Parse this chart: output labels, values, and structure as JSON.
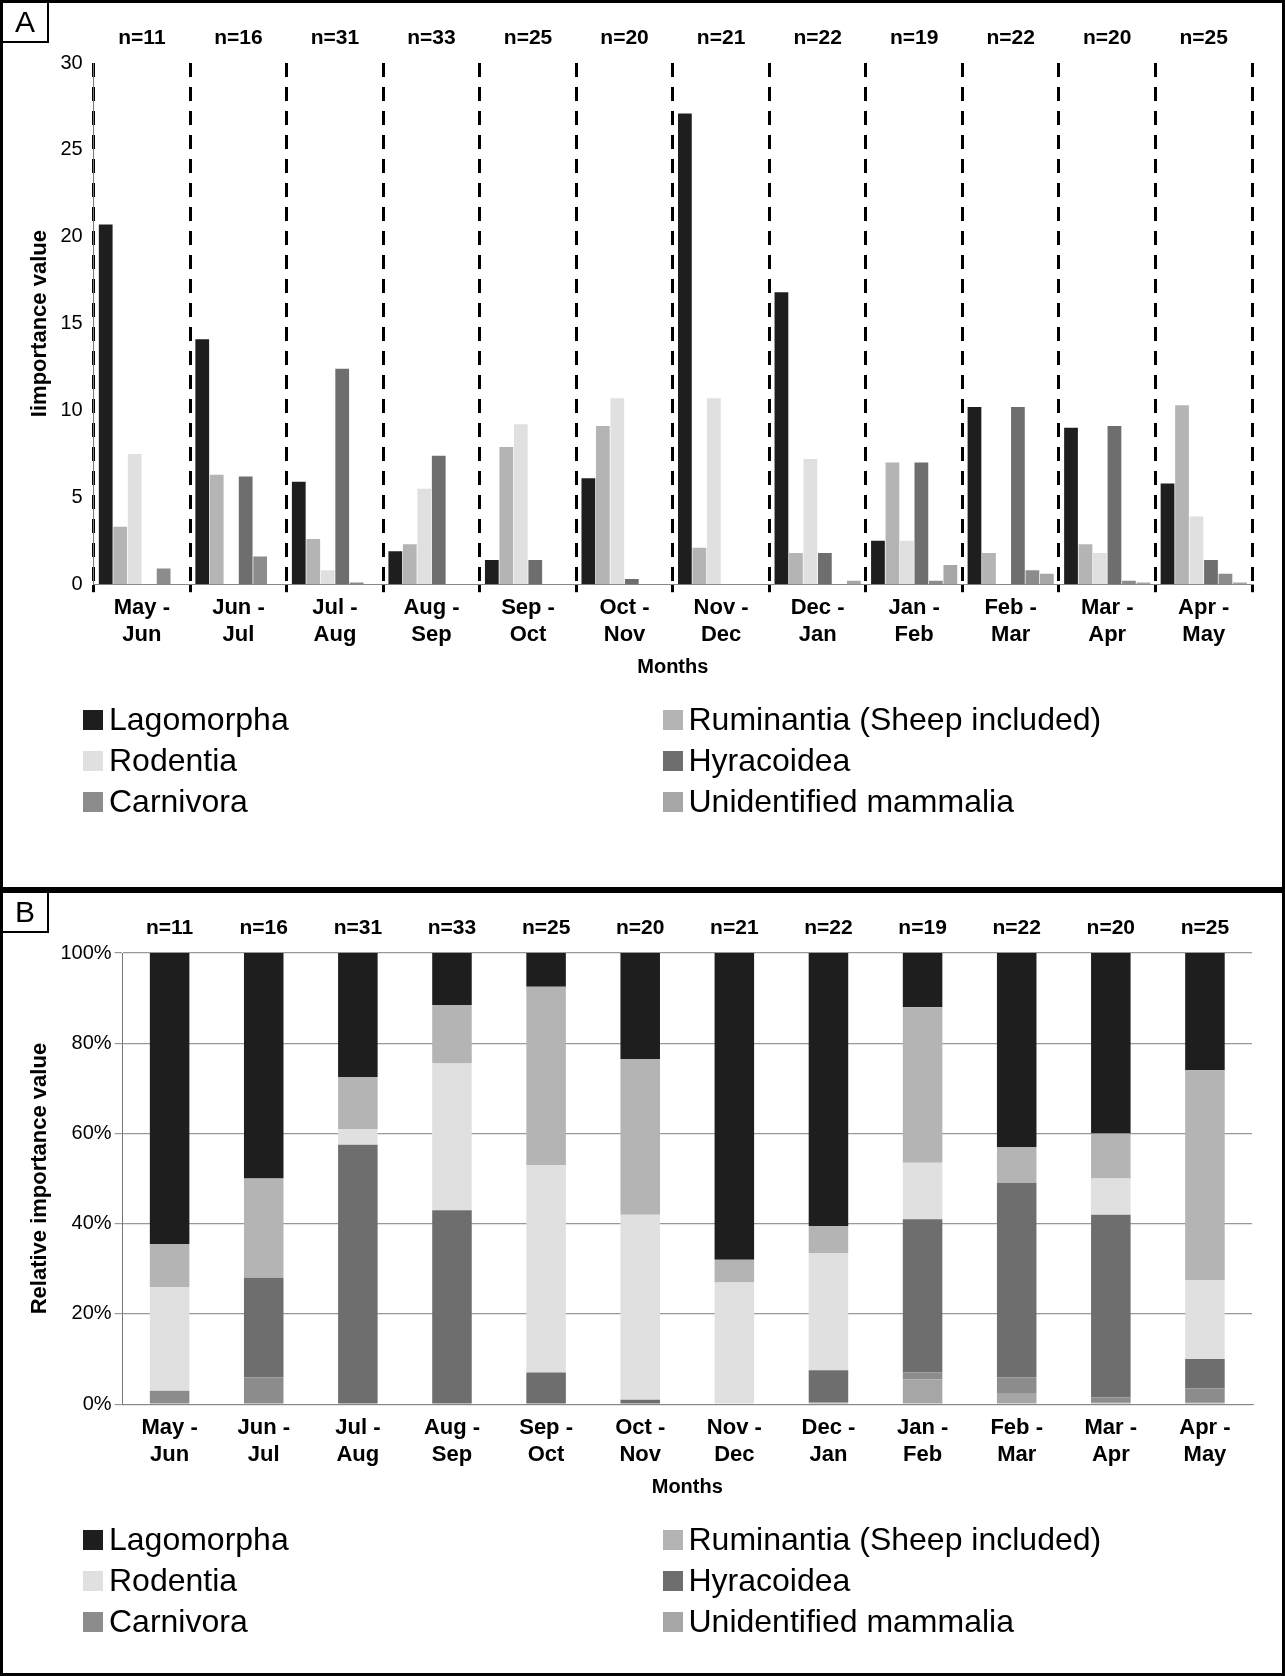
{
  "chart_data": [
    {
      "type": "bar",
      "title": "A",
      "xlabel": "Months",
      "ylabel": "Iimportance value",
      "categories": [
        "May - Jun",
        "Jun - Jul",
        "Jul - Aug",
        "Aug - Sep",
        "Sep - Oct",
        "Oct - Nov",
        "Nov - Dec",
        "Dec - Jan",
        "Jan - Feb",
        "Feb - Mar",
        "Mar - Apr",
        "Apr - May"
      ],
      "series": [
        {
          "name": "Lagomorpha",
          "color": "#1e1e1e",
          "values": [
            20.7,
            14.1,
            5.9,
            1.9,
            1.4,
            6.1,
            27.1,
            16.8,
            2.5,
            10.2,
            9.0,
            5.8
          ]
        },
        {
          "name": "Ruminantia (Sheep included)",
          "color": "#b4b4b4",
          "values": [
            3.3,
            6.3,
            2.6,
            2.3,
            7.9,
            9.1,
            2.1,
            1.8,
            7.0,
            1.8,
            2.3,
            10.3
          ]
        },
        {
          "name": "Rodentia",
          "color": "#e0e0e0",
          "values": [
            7.5,
            0,
            0.8,
            5.5,
            9.2,
            10.7,
            10.7,
            7.2,
            2.5,
            0,
            1.8,
            3.9
          ]
        },
        {
          "name": "Hyracoidea",
          "color": "#6e6e6e",
          "values": [
            0,
            6.2,
            12.4,
            7.4,
            1.4,
            0.3,
            0,
            1.8,
            7.0,
            10.2,
            9.1,
            1.4
          ]
        },
        {
          "name": "Carnivora",
          "color": "#8c8c8c",
          "values": [
            0.9,
            1.6,
            0.1,
            0,
            0,
            0,
            0,
            0,
            0.2,
            0.8,
            0.2,
            0.6
          ]
        },
        {
          "name": "Unidentified mammalia",
          "color": "#a6a6a6",
          "values": [
            0,
            0,
            0,
            0,
            0,
            0,
            0,
            0.2,
            1.1,
            0.6,
            0.1,
            0.1
          ]
        }
      ],
      "ylim": [
        0,
        30
      ],
      "yticks": [
        0,
        5,
        10,
        15,
        20,
        25,
        30
      ],
      "grid": "x",
      "legend": "bottom",
      "annotations": [
        "n=11",
        "n=16",
        "n=31",
        "n=33",
        "n=25",
        "n=20",
        "n=21",
        "n=22",
        "n=19",
        "n=22",
        "n=20",
        "n=25"
      ]
    },
    {
      "type": "bar",
      "title": "B",
      "xlabel": "Months",
      "ylabel": "Relative importance value",
      "stacked": true,
      "categories": [
        "May - Jun",
        "Jun - Jul",
        "Jul - Aug",
        "Aug - Sep",
        "Sep - Oct",
        "Oct - Nov",
        "Nov - Dec",
        "Dec - Jan",
        "Jan - Feb",
        "Feb - Mar",
        "Mar - Apr",
        "Apr - May"
      ],
      "series": [
        {
          "name": "Unidentified mammalia",
          "color": "#a6a6a6",
          "values": [
            0,
            0,
            0,
            0,
            0,
            0,
            0,
            0.5,
            5.5,
            2.5,
            0.5,
            0.5
          ]
        },
        {
          "name": "Carnivora",
          "color": "#8c8c8c",
          "values": [
            3,
            6,
            0,
            0,
            0,
            0,
            0,
            0,
            1.5,
            3.5,
            1,
            3
          ]
        },
        {
          "name": "Hyracoidea",
          "color": "#6e6e6e",
          "values": [
            0,
            22,
            57.5,
            43,
            7,
            1,
            0,
            7,
            34,
            43,
            40.5,
            6.5
          ]
        },
        {
          "name": "Rodentia",
          "color": "#e0e0e0",
          "values": [
            23,
            0,
            3.5,
            32.5,
            46,
            41,
            27,
            26,
            12.5,
            0,
            8,
            17.5
          ]
        },
        {
          "name": "Ruminantia (Sheep included)",
          "color": "#b4b4b4",
          "values": [
            9.5,
            22,
            11.5,
            13,
            39.5,
            34.5,
            5,
            6,
            34.5,
            8,
            10,
            46.5
          ]
        },
        {
          "name": "Lagomorpha",
          "color": "#1e1e1e",
          "values": [
            64.5,
            50,
            27.5,
            11.5,
            7.5,
            23.5,
            68,
            60.5,
            12,
            43,
            40,
            26
          ]
        }
      ],
      "ylim": [
        0,
        100
      ],
      "yticks": [
        {
          "value": 0,
          "label": "0%"
        },
        {
          "value": 20,
          "label": "20%"
        },
        {
          "value": 40,
          "label": "40%"
        },
        {
          "value": 60,
          "label": "60%"
        },
        {
          "value": 80,
          "label": "80%"
        },
        {
          "value": 100,
          "label": "100%"
        }
      ],
      "grid": "y",
      "legend": "bottom",
      "annotations": [
        "n=11",
        "n=16",
        "n=31",
        "n=33",
        "n=25",
        "n=20",
        "n=21",
        "n=22",
        "n=19",
        "n=22",
        "n=20",
        "n=25"
      ]
    }
  ]
}
